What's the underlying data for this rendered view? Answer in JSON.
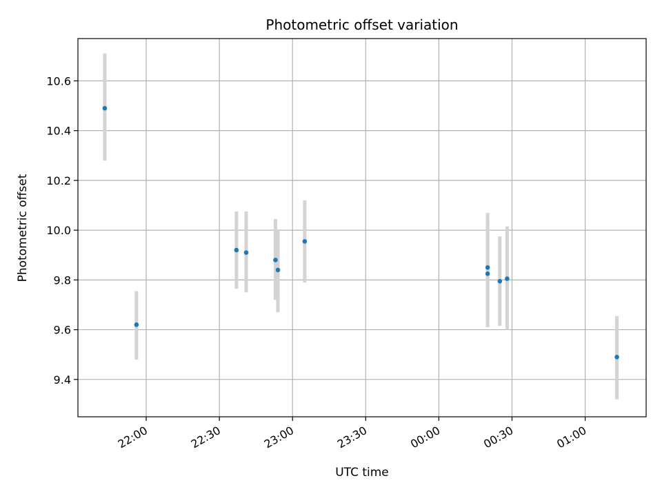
{
  "chart_data": {
    "type": "scatter",
    "title": "Photometric offset variation",
    "xlabel": "UTC time",
    "ylabel": "Photometric offset",
    "x_axis": "time",
    "xlim": [
      "21:32",
      "01:25"
    ],
    "ylim": [
      9.25,
      10.77
    ],
    "x_ticks": [
      "22:00",
      "22:30",
      "23:00",
      "23:30",
      "00:00",
      "00:30",
      "01:00"
    ],
    "y_ticks": [
      "9.4",
      "9.6",
      "9.8",
      "10.0",
      "10.2",
      "10.4",
      "10.6"
    ],
    "grid": true,
    "colors": {
      "point": "#1f77b4",
      "errorbar": "#d3d3d3",
      "grid": "#b0b0b0"
    },
    "points": [
      {
        "x": "21:43",
        "y": 10.49,
        "yerr_low": 10.28,
        "yerr_high": 10.71
      },
      {
        "x": "21:56",
        "y": 9.62,
        "yerr_low": 9.48,
        "yerr_high": 9.755
      },
      {
        "x": "22:37",
        "y": 9.92,
        "yerr_low": 9.765,
        "yerr_high": 10.075
      },
      {
        "x": "22:41",
        "y": 9.91,
        "yerr_low": 9.75,
        "yerr_high": 10.075
      },
      {
        "x": "22:53",
        "y": 9.88,
        "yerr_low": 9.72,
        "yerr_high": 10.045
      },
      {
        "x": "22:54",
        "y": 9.84,
        "yerr_low": 9.67,
        "yerr_high": 10.0
      },
      {
        "x": "23:05",
        "y": 9.955,
        "yerr_low": 9.79,
        "yerr_high": 10.12
      },
      {
        "x": "00:20",
        "y": 9.85,
        "yerr_low": 9.63,
        "yerr_high": 10.07
      },
      {
        "x": "00:20",
        "y": 9.825,
        "yerr_low": 9.61,
        "yerr_high": 10.05
      },
      {
        "x": "00:25",
        "y": 9.795,
        "yerr_low": 9.615,
        "yerr_high": 9.975
      },
      {
        "x": "00:28",
        "y": 9.805,
        "yerr_low": 9.6,
        "yerr_high": 10.015
      },
      {
        "x": "01:13",
        "y": 9.49,
        "yerr_low": 9.32,
        "yerr_high": 9.655
      }
    ]
  }
}
